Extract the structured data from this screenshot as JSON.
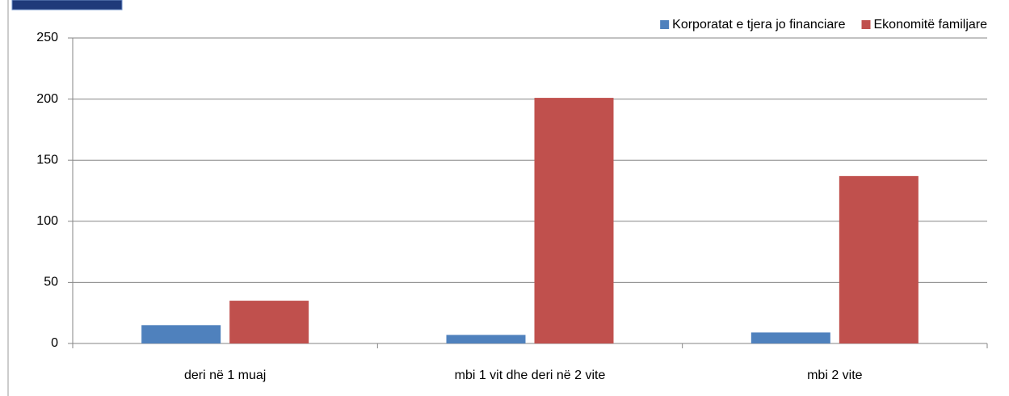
{
  "chart_data": {
    "type": "bar",
    "categories": [
      "deri në 1 muaj",
      "mbi 1 vit dhe deri në 2 vite",
      "mbi 2 vite"
    ],
    "series": [
      {
        "name": "Korporatat e tjera jo financiare",
        "color": "#4f81bd",
        "values": [
          15,
          7,
          9
        ]
      },
      {
        "name": "Ekonomitë familjare",
        "color": "#c0504d",
        "values": [
          35,
          201,
          137
        ]
      }
    ],
    "ylim": [
      0,
      250
    ],
    "yticks": [
      0,
      50,
      100,
      150,
      200,
      250
    ],
    "grid": true,
    "legend": "top-right"
  }
}
